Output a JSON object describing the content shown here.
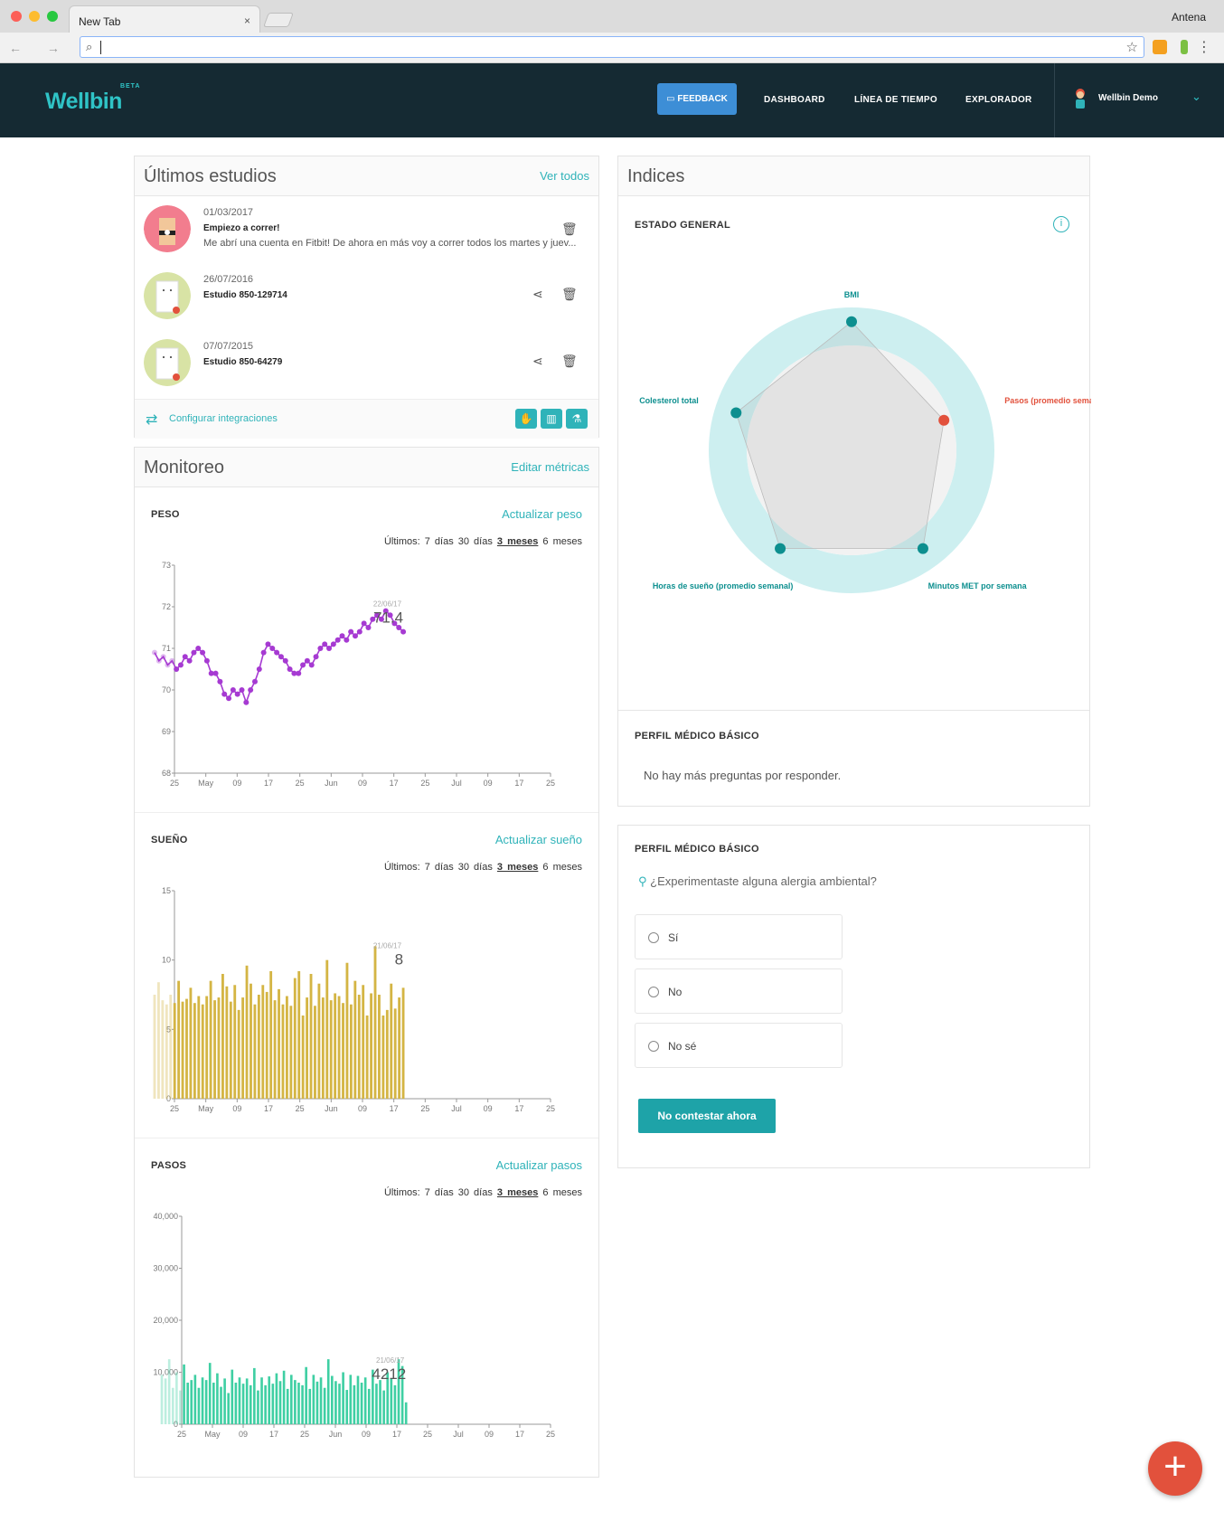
{
  "browser": {
    "tab_title": "New Tab",
    "tab_close": "×",
    "profile_name": "Antena",
    "nav_buttons": "← → ↻",
    "address_value": "",
    "address_icon": "search-icon",
    "bookmark_icon": "star-icon",
    "menu_icon": "⋮"
  },
  "app": {
    "logo": "Wellbin",
    "logo_badge": "BETA",
    "nav": {
      "feedback": "FEEDBACK",
      "dashboard": "DASHBOARD",
      "timeline": "LÍNEA DE TIEMPO",
      "explorer": "EXPLORADOR"
    },
    "user_name": "Wellbin Demo",
    "user_caret": "⌄"
  },
  "studies": {
    "title": "Últimos estudios",
    "see_all": "Ver todos",
    "items": [
      {
        "date": "01/03/2017",
        "name": "Empiezo a correr!",
        "desc": "Me abrí una cuenta en Fitbit! De ahora en más voy a correr todos los martes y juev..."
      },
      {
        "date": "26/07/2016",
        "name": "Estudio 850-129714",
        "desc": ""
      },
      {
        "date": "07/07/2015",
        "name": "Estudio 850-64279",
        "desc": ""
      }
    ],
    "integrations_label": "Configurar integraciones",
    "integration_buttons": [
      "✋",
      "▥",
      "⚗"
    ]
  },
  "monitoring": {
    "title": "Monitoreo",
    "edit_metrics": "Editar métricas",
    "range_label": "Últimos:",
    "ranges": [
      "7 días",
      "30 días",
      "3 meses",
      "6 meses"
    ],
    "selected_range": "3 meses",
    "sections": [
      {
        "title": "PESO",
        "update": "Actualizar peso",
        "last_date": "22/06/17",
        "last_value": "71.4"
      },
      {
        "title": "SUEÑO",
        "update": "Actualizar sueño",
        "last_date": "21/06/17",
        "last_value": "8"
      },
      {
        "title": "PASOS",
        "update": "Actualizar pasos",
        "last_date": "21/06/17",
        "last_value": "4212"
      }
    ]
  },
  "indices": {
    "title": "Indices",
    "general_state": "ESTADO GENERAL",
    "info_icon": "i",
    "radar_labels": [
      "BMI",
      "Pasos (promedio semanal)",
      "Minutos MET por semana",
      "Horas de sueño (promedio semanal)",
      "Colesterol total"
    ],
    "profile_title": "PERFIL MÉDICO BÁSICO",
    "profile_empty": "No hay más preguntas por responder."
  },
  "question": {
    "title": "PERFIL MÉDICO BÁSICO",
    "text": "¿Experimentaste alguna alergia ambiental?",
    "options": [
      "Sí",
      "No",
      "No sé"
    ],
    "skip_button": "No contestar ahora"
  },
  "fab_label": "+",
  "colors": {
    "accent": "#2fb3b9",
    "nav_bg": "#152a33",
    "feedback": "#3d8ed6",
    "weight": "#a63ad2",
    "sleep": "#d4b544",
    "steps": "#3fcfa3",
    "fab": "#e2513c"
  },
  "chart_data": [
    {
      "type": "line",
      "title": "PESO",
      "ylim": [
        68,
        73
      ],
      "yticks": [
        68,
        69,
        70,
        71,
        72,
        73
      ],
      "xticks": [
        "25",
        "May",
        "09",
        "17",
        "25",
        "Jun",
        "09",
        "17",
        "25",
        "Jul",
        "09",
        "17",
        "25"
      ],
      "values": [
        70.9,
        70.7,
        70.8,
        70.6,
        70.7,
        70.5,
        70.6,
        70.8,
        70.7,
        70.9,
        71.0,
        70.9,
        70.7,
        70.4,
        70.4,
        70.2,
        69.9,
        69.8,
        70.0,
        69.9,
        70.0,
        69.7,
        70.0,
        70.2,
        70.5,
        70.9,
        71.1,
        71.0,
        70.9,
        70.8,
        70.7,
        70.5,
        70.4,
        70.4,
        70.6,
        70.7,
        70.6,
        70.8,
        71.0,
        71.1,
        71.0,
        71.1,
        71.2,
        71.3,
        71.2,
        71.4,
        71.3,
        71.4,
        71.6,
        71.5,
        71.7,
        71.8,
        71.7,
        71.9,
        71.8,
        71.6,
        71.5,
        71.4
      ]
    },
    {
      "type": "bar",
      "title": "SUEÑO",
      "ylim": [
        0,
        15
      ],
      "yticks": [
        0,
        5,
        10,
        15
      ],
      "xticks": [
        "25",
        "May",
        "09",
        "17",
        "25",
        "Jun",
        "09",
        "17",
        "25",
        "Jul",
        "09",
        "17",
        "25"
      ],
      "values": [
        7.5,
        8.4,
        7.1,
        6.8,
        7.5,
        6.9,
        8.5,
        7.0,
        7.2,
        8.0,
        6.9,
        7.4,
        6.8,
        7.4,
        8.5,
        7.1,
        7.3,
        9.0,
        8.1,
        7.0,
        8.2,
        6.4,
        7.3,
        9.6,
        8.3,
        6.8,
        7.5,
        8.2,
        7.7,
        9.2,
        7.1,
        7.9,
        6.8,
        7.4,
        6.7,
        8.7,
        9.2,
        6.0,
        7.3,
        9.0,
        6.7,
        8.3,
        7.3,
        10.0,
        7.1,
        7.6,
        7.4,
        6.9,
        9.8,
        6.8,
        8.5,
        7.5,
        8.2,
        6.0,
        7.6,
        11.0,
        7.5,
        6.0,
        6.4,
        8.3,
        6.5,
        7.3,
        8.0
      ]
    },
    {
      "type": "bar",
      "title": "PASOS",
      "ylim": [
        0,
        40000
      ],
      "yticks": [
        0,
        10000,
        20000,
        30000,
        40000
      ],
      "ytick_labels": [
        "0",
        "10,000",
        "20,000",
        "30,000",
        "40,000"
      ],
      "xticks": [
        "25",
        "May",
        "09",
        "17",
        "25",
        "Jun",
        "09",
        "17",
        "25",
        "Jul",
        "09",
        "17",
        "25"
      ],
      "values": [
        9500,
        8800,
        12500,
        7000,
        10000,
        6500,
        11500,
        8000,
        8500,
        9500,
        7000,
        9000,
        8500,
        11800,
        8000,
        9800,
        7200,
        8800,
        6000,
        10500,
        8000,
        9000,
        7800,
        8800,
        7500,
        10800,
        6500,
        9000,
        7500,
        9200,
        7800,
        9800,
        8300,
        10300,
        6800,
        9500,
        8500,
        8000,
        7500,
        11000,
        6800,
        9500,
        8200,
        9000,
        7000,
        12500,
        9300,
        8300,
        7800,
        10000,
        6600,
        9500,
        7500,
        9300,
        8000,
        9000,
        6800,
        10500,
        7800,
        8500,
        6500,
        10000,
        8700,
        7500,
        12500,
        11200,
        4212
      ]
    },
    {
      "type": "radar",
      "title": "ESTADO GENERAL",
      "axes": [
        "BMI",
        "Pasos (promedio semanal)",
        "Minutos MET por semana",
        "Horas de sueño (promedio semanal)",
        "Colesterol total"
      ],
      "values": [
        0.9,
        0.68,
        0.85,
        0.85,
        0.85
      ],
      "point_colors": [
        "#0d8f8f",
        "#e2513c",
        "#0d8f8f",
        "#0d8f8f",
        "#0d8f8f"
      ]
    }
  ]
}
